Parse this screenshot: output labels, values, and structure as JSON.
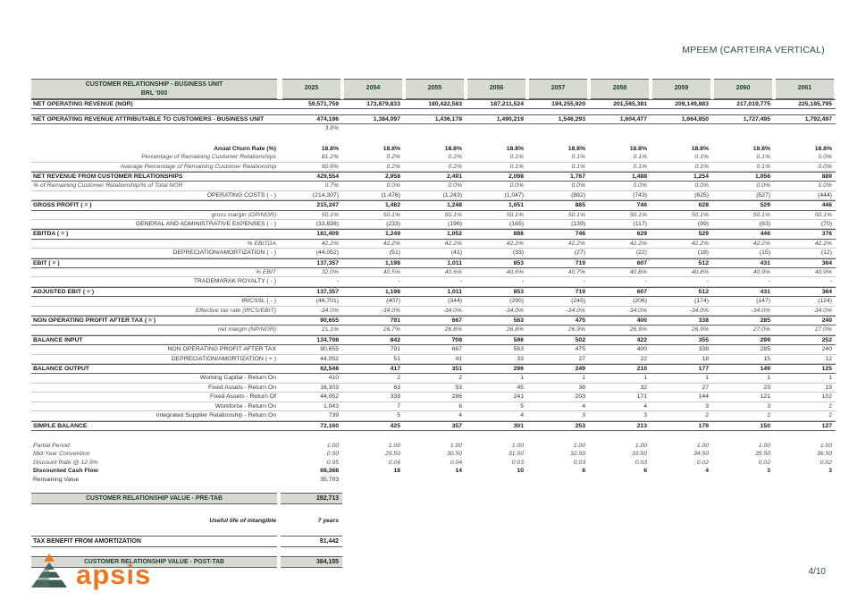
{
  "page": {
    "title": "MPEEM (CARTEIRA VERTICAL)",
    "page_number": "4/10"
  },
  "brand": {
    "name": "apsis",
    "accent_color": "#ee7623",
    "icon_color": "#3f5c50",
    "icon": "tree-chevron-icon"
  },
  "table": {
    "header": {
      "title": "CUSTOMER RELATIONSHIP - BUSINESS UNIT",
      "subtitle": "BRL '000",
      "years": [
        "2025",
        "2054",
        "2055",
        "2056",
        "2057",
        "2058",
        "2059",
        "2060",
        "2061"
      ]
    },
    "rows": [
      {
        "style": "major",
        "align": "L",
        "label": "NET OPERATING REVENUE (NOR)",
        "values": [
          "59,571,759",
          "173,879,833",
          "180,422,583",
          "187,211,524",
          "194,255,920",
          "201,565,381",
          "209,149,883",
          "217,019,775",
          "225,185,795"
        ]
      },
      {
        "style": "gap",
        "h": 6
      },
      {
        "style": "major",
        "align": "L",
        "label": "NET OPERATING REVENUE ATTRIBUTABLE TO CUSTOMERS - BUSINESS UNIT",
        "values": [
          "474,196",
          "1,384,097",
          "1,436,178",
          "1,490,219",
          "1,546,293",
          "1,604,477",
          "1,664,850",
          "1,727,495",
          "1,792,497"
        ]
      },
      {
        "style": "freeI",
        "align": "R",
        "label": "",
        "values": [
          "3.8%",
          "",
          "",
          "",
          "",
          "",
          "",
          "",
          ""
        ]
      },
      {
        "style": "gap",
        "h": 13
      },
      {
        "style": "freeB",
        "align": "R",
        "label": "Anual Churn Rate (%)",
        "values": [
          "18.8%",
          "18.8%",
          "18.8%",
          "18.8%",
          "18.8%",
          "18.8%",
          "18.8%",
          "18.8%",
          "18.8%"
        ]
      },
      {
        "style": "subI",
        "align": "R",
        "label": "Percentage of Remaining Customer Relationships",
        "values": [
          "81.2%",
          "0.2%",
          "0.2%",
          "0.1%",
          "0.1%",
          "0.1%",
          "0.1%",
          "0.1%",
          "0.0%"
        ]
      },
      {
        "style": "subI",
        "align": "R",
        "label": "Average Percentage of Remaining Customer Relationship",
        "values": [
          "90.6%",
          "0.2%",
          "0.2%",
          "0.1%",
          "0.1%",
          "0.1%",
          "0.1%",
          "0.1%",
          "0.0%"
        ]
      },
      {
        "style": "major",
        "align": "L",
        "label": "NET REVENUE FROM CUSTOMER RELATIONSHIPS",
        "values": [
          "429,554",
          "2,958",
          "2,491",
          "2,098",
          "1,767",
          "1,488",
          "1,254",
          "1,056",
          "889"
        ]
      },
      {
        "style": "subI",
        "align": "L",
        "label": "% of Remaining Customer Relationship/% of Total NOR",
        "values": [
          "0.7%",
          "0.0%",
          "0.0%",
          "0.0%",
          "0.0%",
          "0.0%",
          "0.0%",
          "0.0%",
          "0.0%"
        ]
      },
      {
        "style": "subP",
        "align": "R",
        "label": "OPERATING COSTS ( - )",
        "values": [
          "(214,307)",
          "(1,476)",
          "(1,243)",
          "(1,047)",
          "(882)",
          "(743)",
          "(625)",
          "(527)",
          "(444)"
        ]
      },
      {
        "style": "major",
        "align": "L",
        "label": "GROSS PROFIT ( = )",
        "values": [
          "215,247",
          "1,482",
          "1,248",
          "1,051",
          "885",
          "746",
          "628",
          "529",
          "446"
        ]
      },
      {
        "style": "subI",
        "align": "R",
        "label": "gross margin (GP/NOR)",
        "values": [
          "50.1%",
          "50.1%",
          "50.1%",
          "50.1%",
          "50.1%",
          "50.1%",
          "50.1%",
          "50.1%",
          "50.1%"
        ]
      },
      {
        "style": "subP",
        "align": "R",
        "label": "GENERAL AND ADMINISTRATIVE EXPENSES ( - )",
        "values": [
          "(33,838)",
          "(233)",
          "(196)",
          "(165)",
          "(139)",
          "(117)",
          "(99)",
          "(83)",
          "(70)"
        ]
      },
      {
        "style": "major",
        "align": "L",
        "label": "EBITDA ( = )",
        "values": [
          "181,409",
          "1,249",
          "1,052",
          "886",
          "746",
          "629",
          "529",
          "446",
          "376"
        ]
      },
      {
        "style": "subI",
        "align": "R",
        "label": "% EBITDA",
        "values": [
          "42.2%",
          "42.2%",
          "42.2%",
          "42.2%",
          "42.2%",
          "42.2%",
          "42.2%",
          "42.2%",
          "42.2%"
        ]
      },
      {
        "style": "subP",
        "align": "R",
        "label": "DEPRECIATION/AMORTIZATION ( - )",
        "values": [
          "(44,052)",
          "(51)",
          "(41)",
          "(33)",
          "(27)",
          "(22)",
          "(18)",
          "(15)",
          "(12)"
        ]
      },
      {
        "style": "major",
        "align": "L",
        "label": "EBIT ( = )",
        "values": [
          "137,357",
          "1,198",
          "1,011",
          "853",
          "719",
          "607",
          "512",
          "431",
          "364"
        ]
      },
      {
        "style": "subI",
        "align": "R",
        "label": "% EBIT",
        "values": [
          "32.0%",
          "40.5%",
          "40.6%",
          "40.6%",
          "40.7%",
          "40.8%",
          "40.8%",
          "40.9%",
          "40.9%"
        ]
      },
      {
        "style": "subP",
        "align": "R",
        "label": "TRADEMARAK ROYALTY ( - )",
        "values": [
          "-",
          "-",
          "-",
          "-",
          "-",
          "-",
          "-",
          "-",
          "-"
        ]
      },
      {
        "style": "major",
        "align": "L",
        "label": "ADJUSTED EBIT ( = )",
        "values": [
          "137,357",
          "1,198",
          "1,011",
          "853",
          "719",
          "607",
          "512",
          "431",
          "364"
        ]
      },
      {
        "style": "subP",
        "align": "R",
        "label": "IR/CSSL ( - )",
        "values": [
          "(46,701)",
          "(407)",
          "(344)",
          "(290)",
          "(245)",
          "(206)",
          "(174)",
          "(147)",
          "(124)"
        ]
      },
      {
        "style": "subI",
        "align": "R",
        "label": "Effective tax rate (IRCS/EBIT)",
        "values": [
          "-34.0%",
          "-34.0%",
          "-34.0%",
          "-34.0%",
          "-34.0%",
          "-34.0%",
          "-34.0%",
          "-34.0%",
          "-34.0%"
        ]
      },
      {
        "style": "major",
        "align": "L",
        "label": "NON OPERATING PROFIT AFTER TAX ( = )",
        "values": [
          "90,655",
          "791",
          "667",
          "563",
          "475",
          "400",
          "338",
          "285",
          "240"
        ]
      },
      {
        "style": "subI",
        "align": "R",
        "label": "net margin (NP/NOR)",
        "values": [
          "21.1%",
          "26.7%",
          "26.8%",
          "26.8%",
          "26.9%",
          "26.9%",
          "26.9%",
          "27.0%",
          "27.0%"
        ]
      },
      {
        "style": "major",
        "align": "L",
        "label": "BALANCE INPUT",
        "values": [
          "134,708",
          "842",
          "708",
          "596",
          "502",
          "422",
          "355",
          "299",
          "252"
        ]
      },
      {
        "style": "subP",
        "align": "R",
        "label": "NON OPERATING PROFIT AFTER TAX",
        "values": [
          "90,655",
          "791",
          "667",
          "563",
          "475",
          "400",
          "338",
          "285",
          "240"
        ]
      },
      {
        "style": "subP",
        "align": "R",
        "label": "DEPRECIATION/AMORTIZATION ( + )",
        "values": [
          "44,052",
          "51",
          "41",
          "33",
          "27",
          "22",
          "18",
          "15",
          "12"
        ]
      },
      {
        "style": "major",
        "align": "L",
        "label": "BALANCE OUTPUT",
        "values": [
          "62,548",
          "417",
          "351",
          "296",
          "249",
          "210",
          "177",
          "149",
          "125"
        ]
      },
      {
        "style": "subP",
        "align": "R",
        "label": "Working Capital - Return On",
        "values": [
          "410",
          "2",
          "2",
          "1",
          "1",
          "1",
          "1",
          "1",
          "1"
        ]
      },
      {
        "style": "subP",
        "align": "R",
        "label": "Fixed Assets - Return On",
        "values": [
          "16,303",
          "63",
          "53",
          "45",
          "38",
          "32",
          "27",
          "23",
          "19"
        ]
      },
      {
        "style": "subP",
        "align": "R",
        "label": "Fixed Assets - Return Of",
        "values": [
          "44,052",
          "339",
          "286",
          "241",
          "203",
          "171",
          "144",
          "121",
          "102"
        ]
      },
      {
        "style": "subP",
        "align": "R",
        "label": "Workforce - Return On",
        "values": [
          "1,043",
          "7",
          "6",
          "5",
          "4",
          "4",
          "3",
          "3",
          "2"
        ]
      },
      {
        "style": "subP",
        "align": "R",
        "label": "Integrated Supplier Relationship - Return On",
        "values": [
          "739",
          "5",
          "4",
          "4",
          "3",
          "3",
          "2",
          "2",
          "2"
        ]
      },
      {
        "style": "major",
        "align": "L",
        "label": "SIMPLE BALANCE",
        "values": [
          "72,160",
          "425",
          "357",
          "301",
          "253",
          "213",
          "179",
          "150",
          "127"
        ]
      },
      {
        "style": "gap",
        "h": 12
      },
      {
        "style": "freeI",
        "align": "L",
        "label": "Partial Period",
        "values": [
          "1.00",
          "1.00",
          "1.00",
          "1.00",
          "1.00",
          "1.00",
          "1.00",
          "1.00",
          "1.00"
        ]
      },
      {
        "style": "freeI",
        "align": "L",
        "label": "Mid-Year Convention",
        "values": [
          "0.50",
          "29.50",
          "30.50",
          "31.50",
          "32.50",
          "33.50",
          "34.50",
          "35.50",
          "36.50"
        ]
      },
      {
        "style": "freeI",
        "align": "L",
        "label": "Discount Rate @ 12.9%",
        "values": [
          "0.95",
          "0.04",
          "0.04",
          "0.03",
          "0.03",
          "0.03",
          "0.02",
          "0.02",
          "0.02"
        ]
      },
      {
        "style": "freeB",
        "align": "L",
        "label": "Discounted Cash Flow",
        "values": [
          "68,388",
          "18",
          "14",
          "10",
          "8",
          "6",
          "4",
          "3",
          "3"
        ]
      },
      {
        "style": "freeP",
        "align": "L",
        "label": "Remaining Value",
        "values": [
          "35,793",
          "",
          "",
          "",
          "",
          "",
          "",
          "",
          ""
        ]
      }
    ],
    "summary": {
      "pre_tab_label": "CUSTOMER RELATIONSHIP VALUE - PRE-TAB",
      "pre_tab_value": "282,713",
      "useful_life_label": "Useful life of intangible",
      "useful_life_value": "7 years",
      "tax_benefit_label": "TAX BENEFIT FROM AMORTIZATION",
      "tax_benefit_value": "81,442",
      "post_tab_label": "CUSTOMER RELATIONSHIP VALUE - POST-TAB",
      "post_tab_value": "364,155"
    }
  }
}
